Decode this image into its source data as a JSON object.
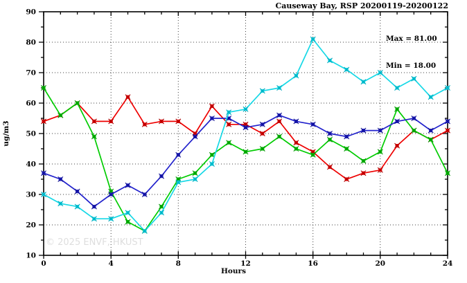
{
  "title": "Causeway Bay, RSP 20200119-20200122",
  "annotations": {
    "max_label": "Max = 81.00",
    "min_label": "Min = 18.00"
  },
  "watermark": "© 2025 ENVF, HKUST",
  "style": {
    "background": "#ffffff",
    "axis_color": "#000000",
    "grid_color": "#3c3c3c",
    "watermark_color": "#dedede"
  },
  "chart_data": {
    "type": "line",
    "title": "Causeway Bay, RSP 20200119-20200122",
    "xlabel": "Hours",
    "ylabel": "ug/m3",
    "legend": "none",
    "grid": "dotted",
    "axes": {
      "xlim": [
        0,
        24
      ],
      "ylim": [
        10,
        90
      ],
      "xticks": [
        0,
        4,
        8,
        12,
        16,
        20,
        24
      ],
      "yticks": [
        10,
        20,
        30,
        40,
        50,
        60,
        70,
        80,
        90
      ],
      "x_minor_step": 1,
      "y_minor_step": 5,
      "x_gridlines": [
        4,
        8,
        12,
        16,
        20
      ],
      "y_gridlines": [
        20,
        30,
        40,
        50,
        60,
        70,
        80
      ]
    },
    "x": [
      0,
      1,
      2,
      3,
      4,
      5,
      6,
      7,
      8,
      9,
      10,
      11,
      12,
      13,
      14,
      15,
      16,
      17,
      18,
      19,
      20,
      21,
      22,
      23,
      24
    ],
    "series": [
      {
        "name": "series-red",
        "color": "#ee0000",
        "marker_edge": "#a80000",
        "values": [
          54,
          56,
          60,
          54,
          54,
          62,
          53,
          54,
          54,
          50,
          59,
          53,
          53,
          50,
          54,
          47,
          44,
          39,
          35,
          37,
          38,
          46,
          51,
          48,
          51
        ]
      },
      {
        "name": "series-green",
        "color": "#00cc00",
        "marker_edge": "#008f00",
        "values": [
          65,
          56,
          60,
          49,
          31,
          21,
          18,
          26,
          35,
          37,
          43,
          47,
          44,
          45,
          49,
          45,
          43,
          48,
          45,
          41,
          44,
          58,
          51,
          48,
          37
        ]
      },
      {
        "name": "series-blue",
        "color": "#2222cc",
        "marker_edge": "#11118c",
        "values": [
          37,
          35,
          31,
          26,
          30,
          33,
          30,
          36,
          43,
          49,
          55,
          55,
          52,
          53,
          56,
          54,
          53,
          50,
          49,
          51,
          51,
          54,
          55,
          51,
          54
        ]
      },
      {
        "name": "series-cyan",
        "color": "#16d8e6",
        "marker_edge": "#00aabd",
        "values": [
          30,
          27,
          26,
          22,
          22,
          24,
          18,
          24,
          34,
          35,
          40,
          57,
          58,
          64,
          65,
          69,
          81,
          74,
          71,
          67,
          70,
          65,
          68,
          62,
          65
        ]
      }
    ],
    "stats": {
      "max": 81.0,
      "min": 18.0
    }
  }
}
